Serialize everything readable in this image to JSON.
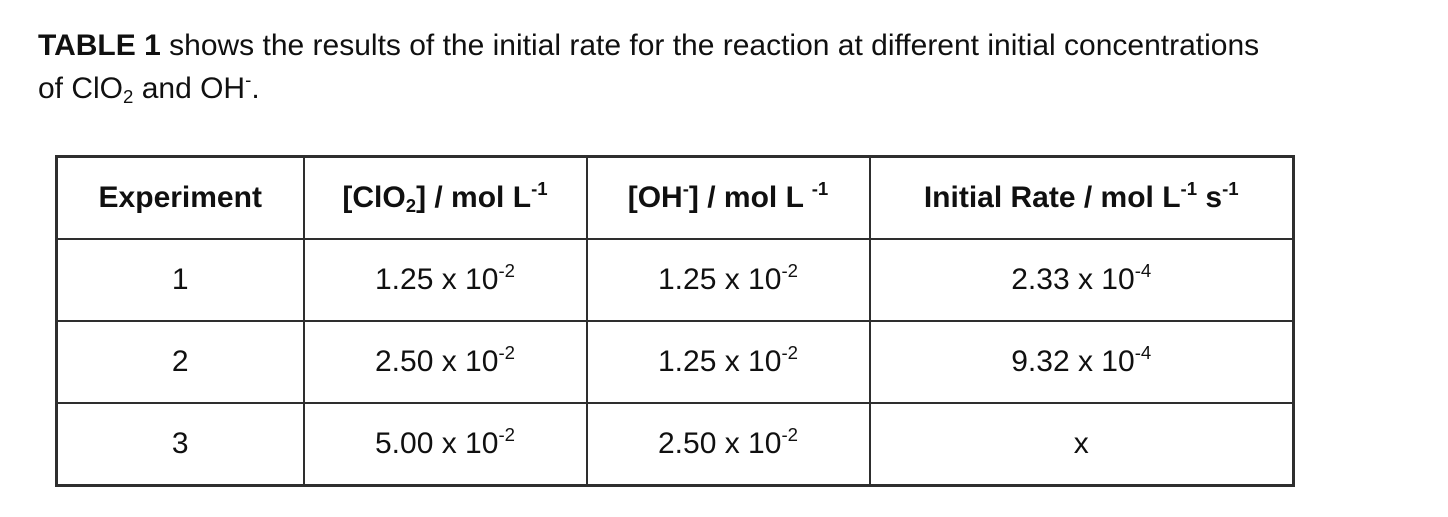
{
  "intro": {
    "line1": {
      "segments": [
        {
          "text": "TABLE 1",
          "style": "bold"
        },
        {
          "text": " shows the results of the initial rate for the reaction at different initial concentrations"
        }
      ]
    },
    "line2": {
      "segments": [
        {
          "text": "of ClO"
        },
        {
          "text": "2",
          "style": "sub"
        },
        {
          "text": " and OH"
        },
        {
          "text": "-",
          "style": "sup"
        },
        {
          "text": "."
        }
      ]
    }
  },
  "table": {
    "headers": [
      {
        "segments": [
          {
            "text": "Experiment"
          }
        ]
      },
      {
        "segments": [
          {
            "text": "[ClO"
          },
          {
            "text": "2",
            "style": "sub"
          },
          {
            "text": "] / mol L"
          },
          {
            "text": "-1",
            "style": "sup"
          }
        ]
      },
      {
        "segments": [
          {
            "text": "[OH"
          },
          {
            "text": "-",
            "style": "sup"
          },
          {
            "text": "] / mol L "
          },
          {
            "text": "-1",
            "style": "sup"
          }
        ]
      },
      {
        "segments": [
          {
            "text": "Initial Rate / mol L"
          },
          {
            "text": "-1",
            "style": "sup"
          },
          {
            "text": " s"
          },
          {
            "text": "-1",
            "style": "sup"
          }
        ]
      }
    ],
    "rows": [
      {
        "cells": [
          [
            {
              "text": "1"
            }
          ],
          [
            {
              "text": "1.25 x 10"
            },
            {
              "text": "-2",
              "style": "sup"
            }
          ],
          [
            {
              "text": "1.25 x 10"
            },
            {
              "text": "-2",
              "style": "sup"
            }
          ],
          [
            {
              "text": "2.33 x 10"
            },
            {
              "text": "-4",
              "style": "sup"
            }
          ]
        ]
      },
      {
        "cells": [
          [
            {
              "text": "2"
            }
          ],
          [
            {
              "text": "2.50 x 10"
            },
            {
              "text": "-2",
              "style": "sup"
            }
          ],
          [
            {
              "text": "1.25 x 10"
            },
            {
              "text": "-2",
              "style": "sup"
            }
          ],
          [
            {
              "text": "9.32 x 10"
            },
            {
              "text": "-4",
              "style": "sup"
            }
          ]
        ]
      },
      {
        "cells": [
          [
            {
              "text": "3"
            }
          ],
          [
            {
              "text": "5.00 x 10"
            },
            {
              "text": "-2",
              "style": "sup"
            }
          ],
          [
            {
              "text": "2.50 x 10"
            },
            {
              "text": "-2",
              "style": "sup"
            }
          ],
          [
            {
              "text": "x"
            }
          ]
        ]
      }
    ]
  },
  "colors": {
    "text": "#101010",
    "border": "#2e2e2e",
    "background": "#ffffff"
  }
}
